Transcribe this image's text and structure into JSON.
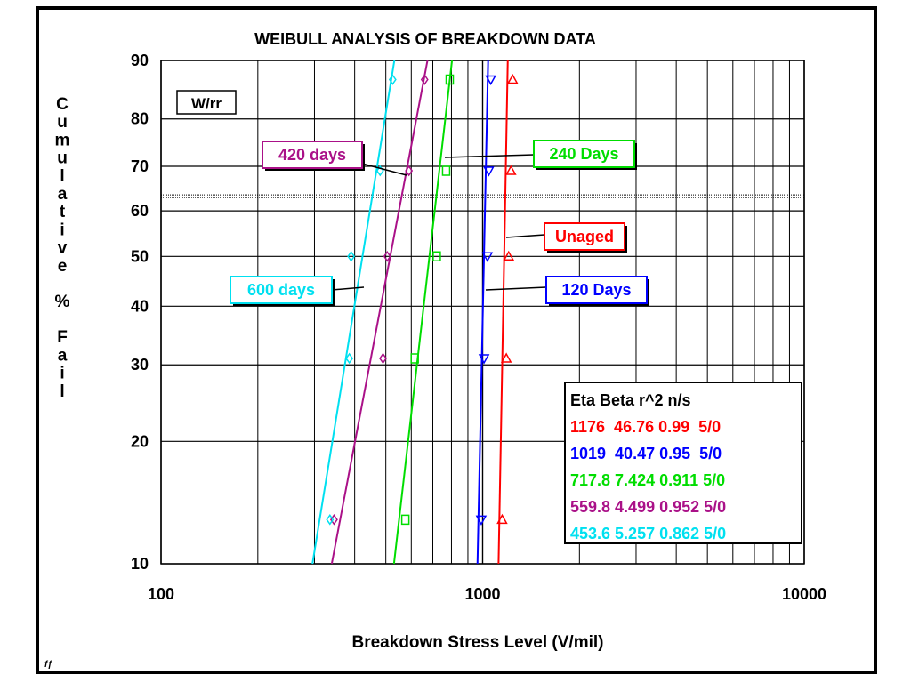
{
  "chart_data": {
    "type": "scatter",
    "title": "WEIBULL ANALYSIS OF BREAKDOWN DATA",
    "xlabel": "Breakdown Stress Level (V/mil)",
    "ylabel": "Cumulative % Fail",
    "xscale": "log",
    "yscale": "weibull",
    "xlim": [
      100,
      10000
    ],
    "ylim": [
      10,
      90
    ],
    "x_ticks": [
      "100",
      "1000",
      "10000"
    ],
    "y_ticks": [
      "10",
      "20",
      "30",
      "40",
      "50",
      "60",
      "70",
      "80",
      "90"
    ],
    "grid": true,
    "method_label": "W/rr",
    "series": [
      {
        "name": "Unaged",
        "color": "#ff0000",
        "marker": "triangle-up",
        "eta": 1176,
        "beta": 46.76,
        "r2": 0.99,
        "ns": "5/0",
        "x": [
          1150,
          1185,
          1205,
          1225,
          1240
        ],
        "y": [
          12.9,
          31.0,
          50.0,
          69.0,
          87.1
        ]
      },
      {
        "name": "120 Days",
        "color": "#0000ff",
        "marker": "triangle-down",
        "eta": 1019,
        "beta": 40.47,
        "r2": 0.95,
        "ns": "5/0",
        "x": [
          990,
          1010,
          1035,
          1045,
          1060
        ],
        "y": [
          12.9,
          31.0,
          50.0,
          69.0,
          87.1
        ]
      },
      {
        "name": "240 Days",
        "color": "#00dd00",
        "marker": "square",
        "eta": 717.8,
        "beta": 7.424,
        "r2": 0.911,
        "ns": "5/0",
        "x": [
          575,
          615,
          720,
          770,
          790
        ],
        "y": [
          12.9,
          31.0,
          50.0,
          69.0,
          87.1
        ]
      },
      {
        "name": "420 days",
        "color": "#aa1188",
        "marker": "diamond",
        "eta": 559.8,
        "beta": 4.499,
        "r2": 0.952,
        "ns": "5/0",
        "x": [
          345,
          490,
          505,
          590,
          660
        ],
        "y": [
          12.9,
          31.0,
          50.0,
          69.0,
          87.1
        ]
      },
      {
        "name": "600 days",
        "color": "#00e0f0",
        "marker": "diamond",
        "eta": 453.6,
        "beta": 5.257,
        "r2": 0.862,
        "ns": "5/0",
        "x": [
          335,
          385,
          390,
          480,
          525
        ],
        "y": [
          12.9,
          31.0,
          50.0,
          69.0,
          87.1
        ]
      }
    ],
    "table_header": "Eta   Beta  r^2   n/s",
    "table_rows": [
      "1176  46.76 0.99  5/0",
      "1019  40.47 0.95  5/0",
      "717.8 7.424 0.911 5/0",
      "559.8 4.499 0.952 5/0",
      "453.6 5.257 0.862 5/0"
    ],
    "corner_mark": "fƒ"
  }
}
